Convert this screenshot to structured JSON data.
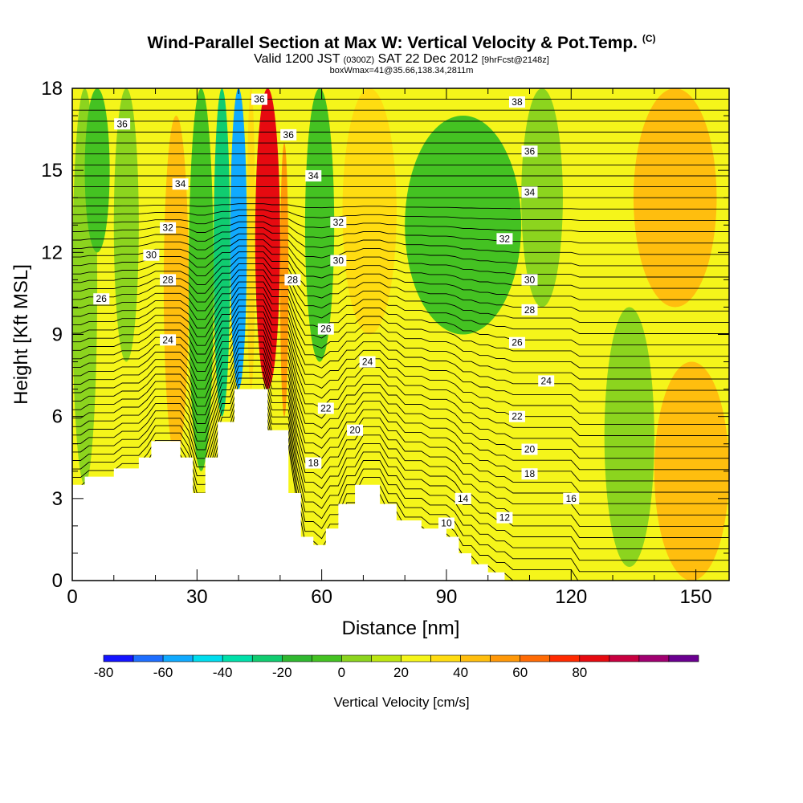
{
  "title": {
    "main": "Wind-Parallel Section at Max W: Vertical Velocity & Pot.Temp.",
    "copyright": "(C)",
    "valid_prefix": "Valid 1200 JST",
    "valid_utc": "(0300Z)",
    "valid_date": "SAT 22 Dec 2012",
    "forecast": "[9hrFcst@2148z]",
    "box_info": "boxWmax=41@35.66,138.34,2811m"
  },
  "chart_data": {
    "type": "heatmap",
    "xlabel": "Distance [nm]",
    "ylabel": "Height [Kft MSL]",
    "xlim": [
      0,
      158
    ],
    "ylim": [
      0,
      18
    ],
    "x_ticks": [
      0,
      30,
      60,
      90,
      120,
      150
    ],
    "y_ticks": [
      0,
      3,
      6,
      9,
      12,
      15,
      18
    ],
    "terrain_profile": [
      [
        0,
        3.5
      ],
      [
        3,
        3.8
      ],
      [
        10,
        4.1
      ],
      [
        16,
        4.5
      ],
      [
        19,
        5.1
      ],
      [
        26,
        4.5
      ],
      [
        29,
        3.2
      ],
      [
        32,
        4.5
      ],
      [
        35,
        5.8
      ],
      [
        39,
        7.0
      ],
      [
        47,
        5.5
      ],
      [
        52,
        3.2
      ],
      [
        55,
        1.6
      ],
      [
        58,
        1.3
      ],
      [
        61,
        1.9
      ],
      [
        64,
        2.8
      ],
      [
        68,
        3.5
      ],
      [
        74,
        2.8
      ],
      [
        78,
        2.2
      ],
      [
        84,
        1.9
      ],
      [
        90,
        1.6
      ],
      [
        93,
        1.0
      ],
      [
        96,
        0.6
      ],
      [
        100,
        0.3
      ],
      [
        104,
        0.0
      ],
      [
        158,
        0.0
      ]
    ],
    "velocity_regions": [
      {
        "x": [
          0,
          6
        ],
        "y": [
          3.5,
          18
        ],
        "value": -15
      },
      {
        "x": [
          3,
          9
        ],
        "y": [
          12,
          18
        ],
        "value": -25
      },
      {
        "x": [
          10,
          16
        ],
        "y": [
          8,
          18
        ],
        "value": -10
      },
      {
        "x": [
          16,
          22
        ],
        "y": [
          5,
          18
        ],
        "value": 5
      },
      {
        "x": [
          22,
          28
        ],
        "y": [
          4.5,
          17
        ],
        "value": 20
      },
      {
        "x": [
          28,
          34
        ],
        "y": [
          4,
          18
        ],
        "value": -25
      },
      {
        "x": [
          34,
          38
        ],
        "y": [
          6,
          18
        ],
        "value": -40
      },
      {
        "x": [
          38,
          42
        ],
        "y": [
          7,
          18
        ],
        "value": -70
      },
      {
        "x": [
          42,
          44
        ],
        "y": [
          7,
          18
        ],
        "value": 10
      },
      {
        "x": [
          44,
          50
        ],
        "y": [
          7,
          18
        ],
        "value": 60
      },
      {
        "x": [
          50,
          52
        ],
        "y": [
          6,
          16
        ],
        "value": 30
      },
      {
        "x": [
          56,
          63
        ],
        "y": [
          8,
          18
        ],
        "value": -25
      },
      {
        "x": [
          65,
          78
        ],
        "y": [
          9,
          18
        ],
        "value": 10
      },
      {
        "x": [
          80,
          108
        ],
        "y": [
          9,
          17
        ],
        "value": -25
      },
      {
        "x": [
          108,
          118
        ],
        "y": [
          10,
          18
        ],
        "value": -15
      },
      {
        "x": [
          128,
          140
        ],
        "y": [
          0.5,
          10
        ],
        "value": -15
      },
      {
        "x": [
          140,
          158
        ],
        "y": [
          0,
          8
        ],
        "value": 25
      },
      {
        "x": [
          135,
          155
        ],
        "y": [
          10,
          18
        ],
        "value": 20
      }
    ],
    "theta_contour_labels": [
      {
        "label": "36",
        "x": 12,
        "y": 16.7
      },
      {
        "label": "36",
        "x": 45,
        "y": 17.6
      },
      {
        "label": "36",
        "x": 52,
        "y": 16.3
      },
      {
        "label": "36",
        "x": 110,
        "y": 15.7
      },
      {
        "label": "38",
        "x": 107,
        "y": 17.5
      },
      {
        "label": "34",
        "x": 26,
        "y": 14.5
      },
      {
        "label": "34",
        "x": 58,
        "y": 14.8
      },
      {
        "label": "34",
        "x": 110,
        "y": 14.2
      },
      {
        "label": "32",
        "x": 23,
        "y": 12.9
      },
      {
        "label": "32",
        "x": 64,
        "y": 13.1
      },
      {
        "label": "32",
        "x": 104,
        "y": 12.5
      },
      {
        "label": "30",
        "x": 19,
        "y": 11.9
      },
      {
        "label": "30",
        "x": 64,
        "y": 11.7
      },
      {
        "label": "30",
        "x": 110,
        "y": 11.0
      },
      {
        "label": "28",
        "x": 23,
        "y": 11.0
      },
      {
        "label": "28",
        "x": 53,
        "y": 11.0
      },
      {
        "label": "28",
        "x": 110,
        "y": 9.9
      },
      {
        "label": "26",
        "x": 7,
        "y": 10.3
      },
      {
        "label": "26",
        "x": 61,
        "y": 9.2
      },
      {
        "label": "26",
        "x": 107,
        "y": 8.7
      },
      {
        "label": "24",
        "x": 23,
        "y": 8.8
      },
      {
        "label": "24",
        "x": 71,
        "y": 8.0
      },
      {
        "label": "24",
        "x": 114,
        "y": 7.3
      },
      {
        "label": "22",
        "x": 61,
        "y": 6.3
      },
      {
        "label": "22",
        "x": 107,
        "y": 6.0
      },
      {
        "label": "20",
        "x": 68,
        "y": 5.5
      },
      {
        "label": "20",
        "x": 110,
        "y": 4.8
      },
      {
        "label": "18",
        "x": 58,
        "y": 4.3
      },
      {
        "label": "18",
        "x": 110,
        "y": 3.9
      },
      {
        "label": "16",
        "x": 120,
        "y": 3.0
      },
      {
        "label": "14",
        "x": 94,
        "y": 3.0
      },
      {
        "label": "12",
        "x": 104,
        "y": 2.3
      },
      {
        "label": "10",
        "x": 90,
        "y": 2.1
      }
    ]
  },
  "colorbar": {
    "title": "Vertical Velocity [cm/s]",
    "labels": [
      "-80",
      "-60",
      "-40",
      "-20",
      "0",
      "20",
      "40",
      "60",
      "80"
    ],
    "colors": [
      "#1414ff",
      "#1e6eff",
      "#10aaff",
      "#00ddee",
      "#00e0aa",
      "#10cc70",
      "#30b830",
      "#44c222",
      "#8cd41e",
      "#bde611",
      "#f5f51a",
      "#ffdc11",
      "#ffbe0e",
      "#ff9808",
      "#ff6b05",
      "#ff2a00",
      "#e60a10",
      "#c80040",
      "#a00070",
      "#6a0090"
    ]
  }
}
